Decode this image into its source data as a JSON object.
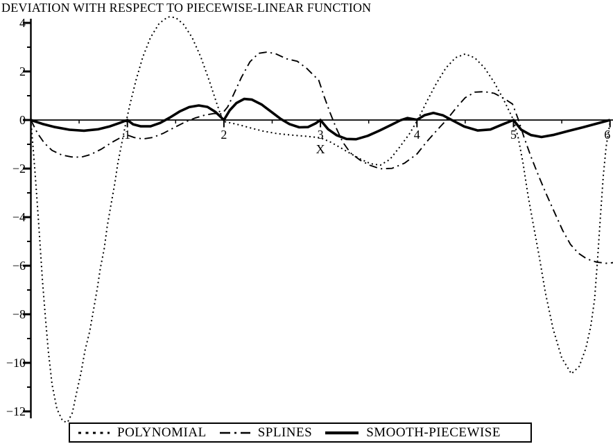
{
  "page": {
    "background": "#ffffff",
    "ink": "#000000"
  },
  "chart_data": {
    "type": "line",
    "title": "DEVIATION WITH RESPECT TO PIECEWISE-LINEAR FUNCTION",
    "xlabel": "X",
    "ylabel": "",
    "xlim": [
      0,
      6.04
    ],
    "ylim": [
      -12.6,
      4.3
    ],
    "grid": false,
    "legend_position": "bottom",
    "x_ticks": [
      {
        "v": 1,
        "label": "1"
      },
      {
        "v": 2,
        "label": "2"
      },
      {
        "v": 3,
        "label": "3"
      },
      {
        "v": 4,
        "label": "4"
      },
      {
        "v": 5,
        "label": "5"
      },
      {
        "v": 6,
        "label": "6",
        "dx": -4
      }
    ],
    "x_minor_ticks": [
      0.5,
      1.5,
      2.5,
      3.5,
      4.5,
      5.5
    ],
    "y_ticks": [
      {
        "v": 4,
        "label": "4"
      },
      {
        "v": 2,
        "label": "2"
      },
      {
        "v": 0,
        "label": "0"
      },
      {
        "v": -2,
        "label": "−2"
      },
      {
        "v": -4,
        "label": "−4"
      },
      {
        "v": -6,
        "label": "−6"
      },
      {
        "v": -8,
        "label": "−8"
      },
      {
        "v": -10,
        "label": "−10"
      },
      {
        "v": -12,
        "label": "−12"
      }
    ],
    "y_minor_ticks": [
      3,
      1,
      -1,
      -3,
      -5,
      -7,
      -9,
      -11
    ],
    "series": [
      {
        "key": "polynomial",
        "name": "POLYNOMIAL",
        "style": "dotted",
        "points": [
          [
            0,
            0
          ],
          [
            0.02,
            -1
          ],
          [
            0.04,
            -2
          ],
          [
            0.06,
            -3.1
          ],
          [
            0.08,
            -4.2
          ],
          [
            0.1,
            -5.4
          ],
          [
            0.12,
            -6.6
          ],
          [
            0.15,
            -8.1
          ],
          [
            0.18,
            -9.5
          ],
          [
            0.22,
            -10.9
          ],
          [
            0.27,
            -11.9
          ],
          [
            0.33,
            -12.4
          ],
          [
            0.38,
            -12.45
          ],
          [
            0.43,
            -12.05
          ],
          [
            0.47,
            -11.3
          ],
          [
            0.52,
            -10.4
          ],
          [
            0.56,
            -9.5
          ],
          [
            0.61,
            -8.7
          ],
          [
            0.65,
            -7.8
          ],
          [
            0.69,
            -6.9
          ],
          [
            0.72,
            -6.1
          ],
          [
            0.76,
            -5.3
          ],
          [
            0.79,
            -4.4
          ],
          [
            0.83,
            -3.5
          ],
          [
            0.87,
            -2.6
          ],
          [
            0.9,
            -1.8
          ],
          [
            0.94,
            -1
          ],
          [
            0.98,
            -0.2
          ],
          [
            1.03,
            0.7
          ],
          [
            1.09,
            1.65
          ],
          [
            1.16,
            2.6
          ],
          [
            1.24,
            3.4
          ],
          [
            1.33,
            3.98
          ],
          [
            1.42,
            4.25
          ],
          [
            1.5,
            4.22
          ],
          [
            1.58,
            3.95
          ],
          [
            1.67,
            3.4
          ],
          [
            1.76,
            2.6
          ],
          [
            1.85,
            1.6
          ],
          [
            1.92,
            0.75
          ],
          [
            1.99,
            -0.05
          ],
          [
            2.07,
            -0.12
          ],
          [
            2.16,
            -0.2
          ],
          [
            2.27,
            -0.32
          ],
          [
            2.4,
            -0.45
          ],
          [
            2.55,
            -0.56
          ],
          [
            2.7,
            -0.62
          ],
          [
            2.85,
            -0.67
          ],
          [
            3,
            -0.73
          ],
          [
            3.1,
            -0.9
          ],
          [
            3.2,
            -1.12
          ],
          [
            3.31,
            -1.38
          ],
          [
            3.42,
            -1.62
          ],
          [
            3.52,
            -1.8
          ],
          [
            3.62,
            -1.86
          ],
          [
            3.72,
            -1.62
          ],
          [
            3.82,
            -1.12
          ],
          [
            3.92,
            -0.58
          ],
          [
            4.01,
            0.02
          ],
          [
            4.1,
            0.75
          ],
          [
            4.2,
            1.5
          ],
          [
            4.3,
            2.15
          ],
          [
            4.4,
            2.57
          ],
          [
            4.5,
            2.72
          ],
          [
            4.6,
            2.56
          ],
          [
            4.7,
            2.15
          ],
          [
            4.8,
            1.55
          ],
          [
            4.9,
            0.82
          ],
          [
            5,
            0
          ],
          [
            5.05,
            -0.75
          ],
          [
            5.1,
            -1.8
          ],
          [
            5.15,
            -3.1
          ],
          [
            5.21,
            -4.4
          ],
          [
            5.27,
            -5.7
          ],
          [
            5.33,
            -7.1
          ],
          [
            5.41,
            -8.6
          ],
          [
            5.5,
            -9.8
          ],
          [
            5.6,
            -10.45
          ],
          [
            5.68,
            -10.15
          ],
          [
            5.75,
            -9.4
          ],
          [
            5.8,
            -8.5
          ],
          [
            5.84,
            -7.4
          ],
          [
            5.87,
            -5.8
          ],
          [
            5.9,
            -4
          ],
          [
            5.93,
            -2.3
          ],
          [
            5.96,
            -1.1
          ],
          [
            6,
            -0.1
          ]
        ]
      },
      {
        "key": "splines",
        "name": "SPLINES",
        "style": "dashdot",
        "points": [
          [
            0,
            0
          ],
          [
            0.07,
            -0.55
          ],
          [
            0.14,
            -0.95
          ],
          [
            0.22,
            -1.25
          ],
          [
            0.32,
            -1.44
          ],
          [
            0.42,
            -1.52
          ],
          [
            0.52,
            -1.53
          ],
          [
            0.62,
            -1.42
          ],
          [
            0.73,
            -1.2
          ],
          [
            0.84,
            -0.92
          ],
          [
            0.94,
            -0.7
          ],
          [
            1,
            -0.62
          ],
          [
            1.07,
            -0.72
          ],
          [
            1.16,
            -0.78
          ],
          [
            1.26,
            -0.72
          ],
          [
            1.37,
            -0.55
          ],
          [
            1.49,
            -0.3
          ],
          [
            1.6,
            -0.08
          ],
          [
            1.7,
            0.08
          ],
          [
            1.8,
            0.2
          ],
          [
            1.9,
            0.27
          ],
          [
            1.98,
            0.25
          ],
          [
            2.04,
            0.55
          ],
          [
            2.1,
            1.05
          ],
          [
            2.18,
            1.75
          ],
          [
            2.27,
            2.4
          ],
          [
            2.36,
            2.75
          ],
          [
            2.45,
            2.8
          ],
          [
            2.54,
            2.72
          ],
          [
            2.65,
            2.52
          ],
          [
            2.76,
            2.42
          ],
          [
            2.86,
            2.12
          ],
          [
            2.94,
            1.8
          ],
          [
            2.98,
            1.67
          ],
          [
            3.04,
            0.95
          ],
          [
            3.1,
            0.3
          ],
          [
            3.16,
            -0.3
          ],
          [
            3.23,
            -0.9
          ],
          [
            3.31,
            -1.35
          ],
          [
            3.41,
            -1.65
          ],
          [
            3.51,
            -1.86
          ],
          [
            3.62,
            -2.01
          ],
          [
            3.74,
            -1.99
          ],
          [
            3.87,
            -1.78
          ],
          [
            4,
            -1.4
          ],
          [
            4.1,
            -0.9
          ],
          [
            4.2,
            -0.45
          ],
          [
            4.31,
            0.02
          ],
          [
            4.41,
            0.52
          ],
          [
            4.5,
            0.92
          ],
          [
            4.6,
            1.15
          ],
          [
            4.7,
            1.17
          ],
          [
            4.8,
            1.1
          ],
          [
            4.9,
            0.89
          ],
          [
            4.99,
            0.66
          ],
          [
            5.05,
            0.02
          ],
          [
            5.11,
            -0.72
          ],
          [
            5.18,
            -1.5
          ],
          [
            5.26,
            -2.3
          ],
          [
            5.34,
            -3.05
          ],
          [
            5.43,
            -3.85
          ],
          [
            5.51,
            -4.55
          ],
          [
            5.59,
            -5.12
          ],
          [
            5.67,
            -5.48
          ],
          [
            5.76,
            -5.72
          ],
          [
            5.86,
            -5.85
          ],
          [
            5.96,
            -5.9
          ],
          [
            6.04,
            -5.87
          ]
        ]
      },
      {
        "key": "smooth-piecewise",
        "name": "SMOOTH-PIECEWISE",
        "style": "solid",
        "points": [
          [
            0,
            0
          ],
          [
            0.12,
            -0.16
          ],
          [
            0.25,
            -0.29
          ],
          [
            0.4,
            -0.4
          ],
          [
            0.55,
            -0.44
          ],
          [
            0.7,
            -0.38
          ],
          [
            0.82,
            -0.26
          ],
          [
            0.92,
            -0.12
          ],
          [
            1,
            0
          ],
          [
            1.06,
            -0.18
          ],
          [
            1.14,
            -0.26
          ],
          [
            1.24,
            -0.26
          ],
          [
            1.34,
            -0.12
          ],
          [
            1.44,
            0.1
          ],
          [
            1.54,
            0.35
          ],
          [
            1.64,
            0.53
          ],
          [
            1.74,
            0.6
          ],
          [
            1.83,
            0.54
          ],
          [
            1.91,
            0.34
          ],
          [
            2,
            0
          ],
          [
            2.06,
            0.4
          ],
          [
            2.13,
            0.7
          ],
          [
            2.21,
            0.87
          ],
          [
            2.29,
            0.84
          ],
          [
            2.39,
            0.64
          ],
          [
            2.49,
            0.34
          ],
          [
            2.59,
            0.04
          ],
          [
            2.68,
            -0.17
          ],
          [
            2.78,
            -0.3
          ],
          [
            2.87,
            -0.29
          ],
          [
            2.95,
            -0.14
          ],
          [
            3,
            0
          ],
          [
            3.08,
            -0.38
          ],
          [
            3.17,
            -0.63
          ],
          [
            3.27,
            -0.78
          ],
          [
            3.37,
            -0.79
          ],
          [
            3.49,
            -0.65
          ],
          [
            3.61,
            -0.44
          ],
          [
            3.73,
            -0.21
          ],
          [
            3.83,
            -0.01
          ],
          [
            3.9,
            0.08
          ],
          [
            3.97,
            0.03
          ],
          [
            4,
            0.01
          ],
          [
            4.08,
            0.2
          ],
          [
            4.17,
            0.29
          ],
          [
            4.27,
            0.19
          ],
          [
            4.37,
            -0.02
          ],
          [
            4.49,
            -0.27
          ],
          [
            4.63,
            -0.43
          ],
          [
            4.76,
            -0.39
          ],
          [
            4.88,
            -0.19
          ],
          [
            5,
            0
          ],
          [
            5.08,
            -0.4
          ],
          [
            5.18,
            -0.62
          ],
          [
            5.29,
            -0.7
          ],
          [
            5.42,
            -0.61
          ],
          [
            5.57,
            -0.45
          ],
          [
            5.72,
            -0.3
          ],
          [
            5.87,
            -0.14
          ],
          [
            6,
            0
          ]
        ]
      }
    ]
  },
  "legend": {
    "items": [
      {
        "label": "POLYNOMIAL"
      },
      {
        "label": "SPLINES"
      },
      {
        "label": "SMOOTH-PIECEWISE"
      }
    ]
  }
}
